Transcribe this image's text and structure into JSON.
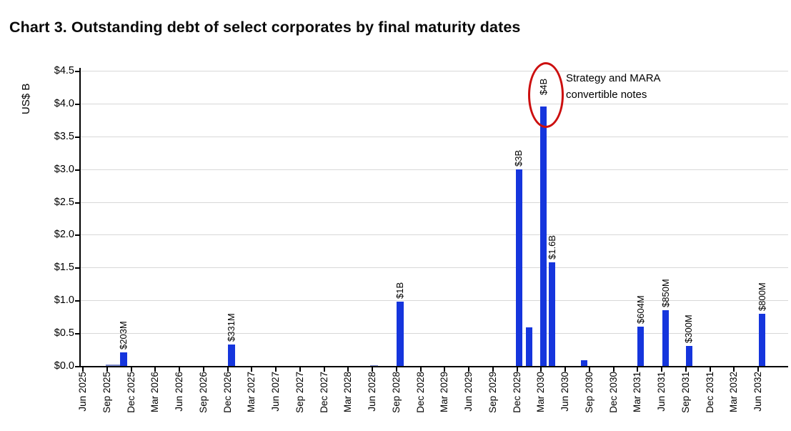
{
  "chart_data": {
    "type": "bar",
    "title": "Chart 3. Outstanding debt of select corporates by final maturity dates",
    "ylabel": "US$ B",
    "ylim": [
      0,
      4.5
    ],
    "grid": "horizontal",
    "yticks": [
      {
        "value": 0.0,
        "label": "$0.0"
      },
      {
        "value": 0.5,
        "label": "$0.5"
      },
      {
        "value": 1.0,
        "label": "$1.0"
      },
      {
        "value": 1.5,
        "label": "$1.5"
      },
      {
        "value": 2.0,
        "label": "$2.0"
      },
      {
        "value": 2.5,
        "label": "$2.5"
      },
      {
        "value": 3.0,
        "label": "$3.0"
      },
      {
        "value": 3.5,
        "label": "$3.5"
      },
      {
        "value": 4.0,
        "label": "$4.0"
      },
      {
        "value": 4.5,
        "label": "$4.5"
      }
    ],
    "categories": [
      "Jun 2025",
      "Sep 2025",
      "Dec 2025",
      "Mar 2026",
      "Jun 2026",
      "Sep 2026",
      "Dec 2026",
      "Mar 2027",
      "Jun 2027",
      "Sep 2027",
      "Dec 2027",
      "Mar 2028",
      "Jun 2028",
      "Sep 2028",
      "Dec 2028",
      "Mar 2029",
      "Jun 2029",
      "Sep 2029",
      "Dec 2029",
      "Mar 2030",
      "Jun 2030",
      "Sep 2030",
      "Dec 2030",
      "Mar 2031",
      "Jun 2031",
      "Sep 2031",
      "Dec 2031",
      "Mar 2032",
      "Jun 2032"
    ],
    "bars": [
      {
        "category": "Sep 2025",
        "cat_index": 1,
        "value_b": 0.02,
        "label": "",
        "dx": -2,
        "width": 22,
        "muted": true
      },
      {
        "category": "Sep 2025",
        "cat_index": 1,
        "value_b": 0.203,
        "label": "$203M",
        "dx": 18,
        "width": 10
      },
      {
        "category": "Dec 2026",
        "cat_index": 6,
        "value_b": 0.331,
        "label": "$331M",
        "dx": 0,
        "width": 10
      },
      {
        "category": "Jun 2028",
        "cat_index": 12,
        "value_b": 0.015,
        "label": "",
        "dx": -3,
        "width": 11,
        "muted": true
      },
      {
        "category": "Sep 2028",
        "cat_index": 13,
        "value_b": 0.98,
        "label": "$1B",
        "dx": 0,
        "width": 10
      },
      {
        "category": "Dec 2029",
        "cat_index": 18,
        "value_b": 3.0,
        "label": "$3B",
        "dx": -2,
        "width": 9
      },
      {
        "category": "Dec 2029",
        "cat_index": 18,
        "value_b": 0.59,
        "label": "",
        "dx": 12,
        "width": 9
      },
      {
        "category": "Mar 2030",
        "cat_index": 19,
        "value_b": 3.95,
        "label": "$4B",
        "dx": -1,
        "width": 9,
        "circled": true
      },
      {
        "category": "Mar 2030",
        "cat_index": 19,
        "value_b": 1.58,
        "label": "$1.6B",
        "dx": 11,
        "width": 9
      },
      {
        "category": "Sep 2030",
        "cat_index": 21,
        "value_b": 0.09,
        "label": "",
        "dx": -12,
        "width": 9
      },
      {
        "category": "Mar 2031",
        "cat_index": 23,
        "value_b": 0.604,
        "label": "$604M",
        "dx": 0,
        "width": 9
      },
      {
        "category": "Jun 2031",
        "cat_index": 24,
        "value_b": 0.85,
        "label": "$850M",
        "dx": 1,
        "width": 9
      },
      {
        "category": "Sep 2031",
        "cat_index": 25,
        "value_b": 0.3,
        "label": "$300M",
        "dx": 0,
        "width": 9
      },
      {
        "category": "Jun 2032",
        "cat_index": 28,
        "value_b": 0.8,
        "label": "$800M",
        "dx": 1,
        "width": 9
      }
    ],
    "annotation": {
      "lines": [
        "Strategy and MARA",
        "convertible notes"
      ]
    },
    "legend": "none",
    "colors": {
      "bar": "#1535dd",
      "bar_muted": "#7d8bce",
      "grid": "#d8d8d8",
      "axis": "#000000",
      "ellipse": "#cc0f0f",
      "text": "#000000"
    }
  }
}
